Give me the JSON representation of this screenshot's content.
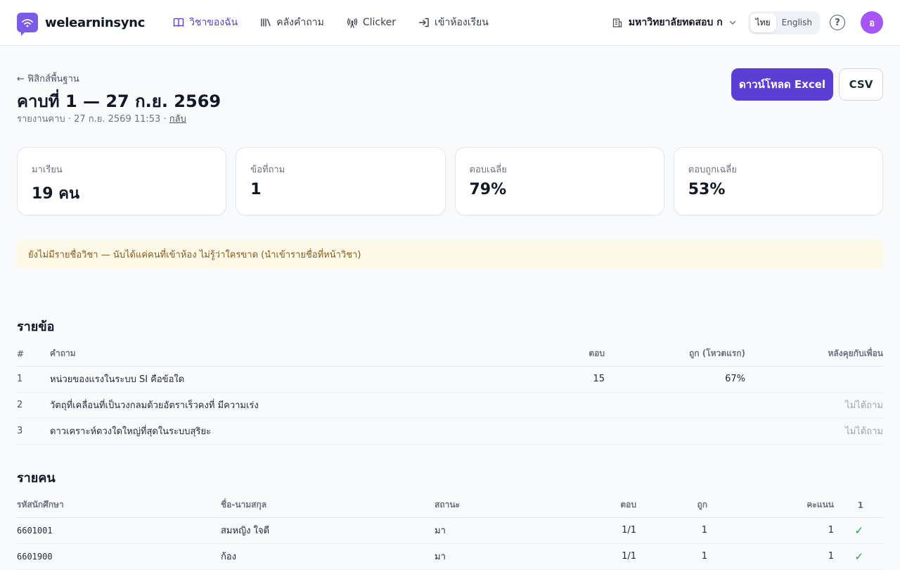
{
  "header": {
    "brand": "welearninsync",
    "nav": [
      {
        "label": "วิชาของฉัน",
        "icon": "book-icon",
        "active": true
      },
      {
        "label": "คลังคำถาม",
        "icon": "library-icon",
        "active": false
      },
      {
        "label": "Clicker",
        "icon": "broadcast-icon",
        "active": false
      },
      {
        "label": "เข้าห้องเรียน",
        "icon": "enter-icon",
        "active": false
      }
    ],
    "org": "มหาวิทยาลัยทดสอบ ก",
    "lang": {
      "th": "ไทย",
      "en": "English"
    },
    "help": "?",
    "avatar": "อ"
  },
  "page": {
    "back": "← ฟิสิกส์พื้นฐาน",
    "title": "คาบที่ 1 — 27 ก.ย. 2569",
    "subtitle": "รายงานคาบ · 27 ก.ย. 2569 11:53 · ",
    "back_link": "กลับ",
    "download_excel": "ดาวน์โหลด Excel",
    "csv": "CSV"
  },
  "stats": [
    {
      "label": "มาเรียน",
      "value": "19 คน"
    },
    {
      "label": "ข้อที่ถาม",
      "value": "1"
    },
    {
      "label": "ตอบเฉลี่ย",
      "value": "79%"
    },
    {
      "label": "ตอบถูกเฉลี่ย",
      "value": "53%"
    }
  ],
  "alert": "ยังไม่มีรายชื่อวิชา — นับได้แค่คนที่เข้าห้อง ไม่รู้ว่าใครขาด (นำเข้ารายชื่อที่หน้าวิชา)",
  "questions": {
    "title": "รายข้อ",
    "headers": [
      "#",
      "คำถาม",
      "ตอบ",
      "ถูก (โหวตแรก)",
      "หลังคุยกับเพื่อน"
    ],
    "rows": [
      {
        "no": "1",
        "question": "หน่วยของแรงในระบบ SI คือข้อใด",
        "answered": "15",
        "correct": "67%",
        "after": ""
      },
      {
        "no": "2",
        "question": "วัตถุที่เคลื่อนที่เป็นวงกลมด้วยอัตราเร็วคงที่ มีความเร่ง",
        "answered": "",
        "correct": "",
        "after": "ไม่ได้ถาม"
      },
      {
        "no": "3",
        "question": "ดาวเคราะห์ดวงใดใหญ่ที่สุดในระบบสุริยะ",
        "answered": "",
        "correct": "",
        "after": "ไม่ได้ถาม"
      }
    ]
  },
  "students": {
    "title": "รายคน",
    "headers": [
      "รหัสนักศึกษา",
      "ชื่อ-นามสกุล",
      "สถานะ",
      "ตอบ",
      "ถูก",
      "คะแนน",
      "1"
    ],
    "rows": [
      {
        "id": "6601001",
        "name": "สมหญิง ใจดี",
        "status": "มา",
        "answered": "1/1",
        "correct": "1",
        "score": "1",
        "q1": "✓"
      },
      {
        "id": "6601900",
        "name": "ก้อง",
        "status": "มา",
        "answered": "1/1",
        "correct": "1",
        "score": "1",
        "q1": "✓"
      }
    ]
  },
  "colors": {
    "primary": "#5b3fd4",
    "avatar": "#a855f7",
    "alert_bg": "#fef9e7",
    "success": "#16a34a"
  }
}
